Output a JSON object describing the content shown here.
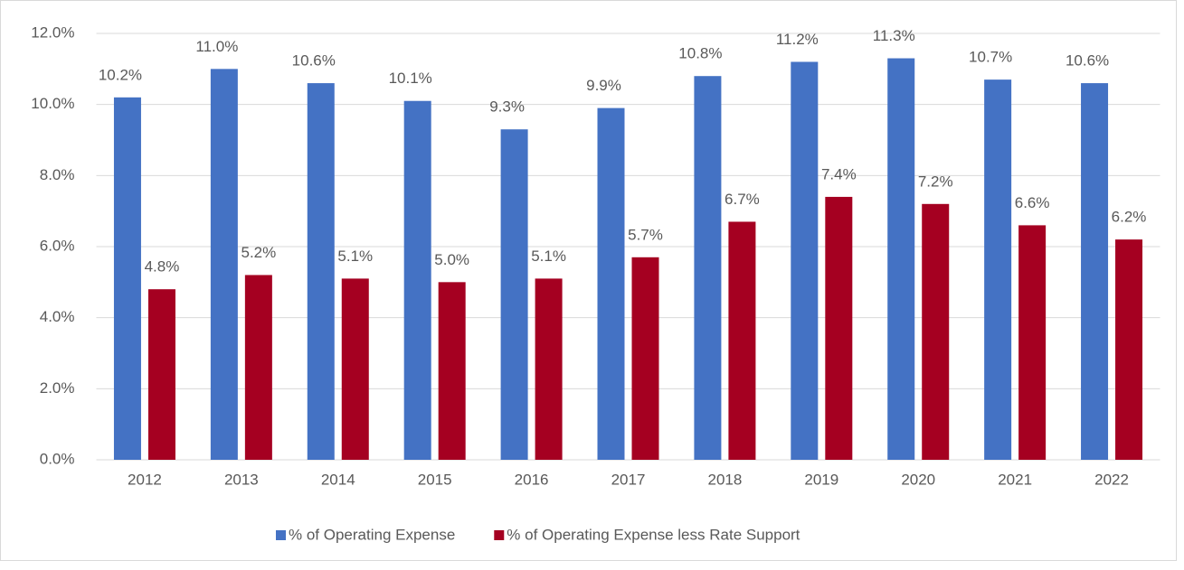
{
  "chart_data": {
    "type": "bar",
    "categories": [
      "2012",
      "2013",
      "2014",
      "2015",
      "2016",
      "2017",
      "2018",
      "2019",
      "2020",
      "2021",
      "2022"
    ],
    "series": [
      {
        "name": "% of Operating Expense",
        "color": "#4472c4",
        "values": [
          10.2,
          11.0,
          10.6,
          10.1,
          9.3,
          9.9,
          10.8,
          11.2,
          11.3,
          10.7,
          10.6
        ],
        "value_labels": [
          "10.2%",
          "11.0%",
          "10.6%",
          "10.1%",
          "9.3%",
          "9.9%",
          "10.8%",
          "11.2%",
          "11.3%",
          "10.7%",
          "10.6%"
        ]
      },
      {
        "name": "% of Operating Expense less Rate Support",
        "color": "#a50021",
        "values": [
          4.8,
          5.2,
          5.1,
          5.0,
          5.1,
          5.7,
          6.7,
          7.4,
          7.2,
          6.6,
          6.2
        ],
        "value_labels": [
          "4.8%",
          "5.2%",
          "5.1%",
          "5.0%",
          "5.1%",
          "5.7%",
          "6.7%",
          "7.4%",
          "7.2%",
          "6.6%",
          "6.2%"
        ]
      }
    ],
    "ylim": [
      0,
      12
    ],
    "yticks": [
      {
        "value": 0,
        "label": "0.0%"
      },
      {
        "value": 2,
        "label": "2.0%"
      },
      {
        "value": 4,
        "label": "4.0%"
      },
      {
        "value": 6,
        "label": "6.0%"
      },
      {
        "value": 8,
        "label": "8.0%"
      },
      {
        "value": 10,
        "label": "10.0%"
      },
      {
        "value": 12,
        "label": "12.0%"
      }
    ],
    "grid": true,
    "legend": "bottom"
  }
}
